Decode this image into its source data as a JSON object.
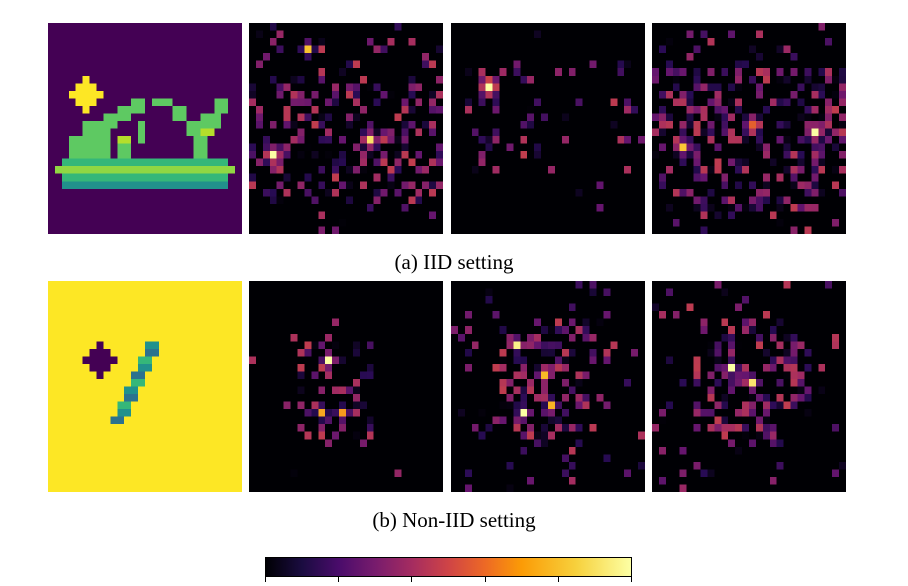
{
  "captions": {
    "iid": "(a) IID setting",
    "non_iid": "(b) Non-IID setting"
  },
  "rows": [
    {
      "name": "iid",
      "input_image": "sandal with plus trigger",
      "input_colormap": "viridis",
      "attribution_colormap": "inferno"
    },
    {
      "name": "non-iid",
      "input_image": "digit one with plus trigger",
      "input_colormap": "viridis",
      "attribution_colormap": "inferno"
    }
  ],
  "colorbar": {
    "colormap": "inferno",
    "ticks": 6
  }
}
